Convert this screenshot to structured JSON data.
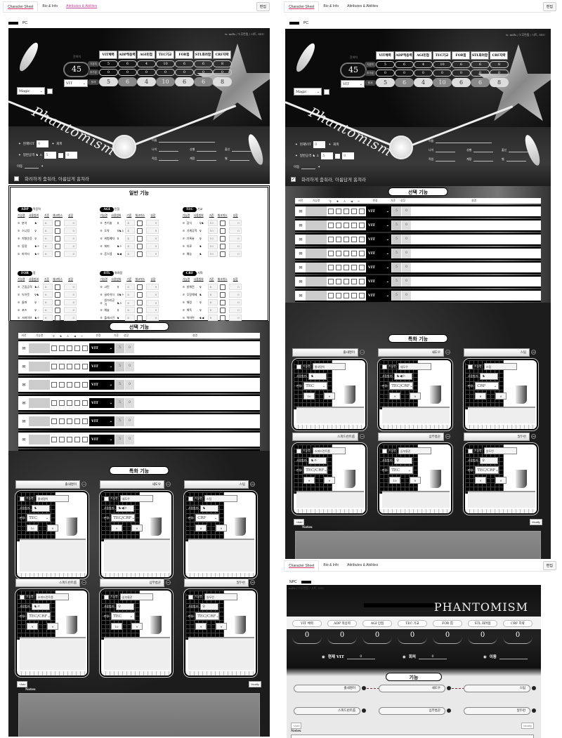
{
  "tabs": [
    "Character Sheet",
    "Bio & Info",
    "Attributes & Abilities"
  ],
  "edit_button": "편집",
  "pc": {
    "label": "PC",
    "credit": "w. mills / T.무런됨 / 시트, SSU",
    "points_label": "잔여치",
    "points": "45",
    "stat_select": "VIT",
    "magic_select": "Magic",
    "logo": "Phantomism",
    "stats": {
      "headers": [
        "VIT체력",
        "ADP적응력",
        "AGI민첩",
        "TEC기교",
        "FOR힘",
        "STL화려함",
        "CRF지략"
      ],
      "row_labels": [
        "기본치",
        "추가분",
        "합계"
      ],
      "base": [
        "5",
        "6",
        "4",
        "10",
        "6",
        "6",
        "8"
      ],
      "bonus": [
        "0",
        "0",
        "0",
        "0",
        "0",
        "0",
        "0"
      ],
      "total": [
        "5",
        "6",
        "4",
        "10",
        "6",
        "6",
        "8"
      ]
    },
    "status": {
      "current_vit_label": "현재VIT",
      "current_vit": "0",
      "evade_label": "회피",
      "attack_label": "일반공격 ♞ ♙",
      "attack_value": "5",
      "attack_extra": "0",
      "move_label": "이동"
    },
    "profile": [
      "이름",
      "나이",
      "성별",
      "출신",
      "직업",
      "계정",
      "별"
    ],
    "motto": "화려하게 춤춰라, 아름답게 훔쳐라",
    "general": {
      "title": "일반 기능",
      "columns": [
        "기능명",
        "사용범위",
        "기준",
        "체크박스",
        "성장"
      ],
      "groups": [
        {
          "code": "ADP",
          "name": "적응력",
          "value": "6",
          "skills": [
            {
              "name": "분석",
              "range": "♞"
            },
            {
              "name": "스니킹",
              "range": "♀"
            },
            {
              "name": "지형순응",
              "range": "♀"
            },
            {
              "name": "동정",
              "range": "♞☼"
            },
            {
              "name": "마이티",
              "range": "♞☼"
            }
          ]
        },
        {
          "code": "AGI",
          "name": "민첩",
          "value": "4",
          "skills": [
            {
              "name": "손기술",
              "range": "♀"
            },
            {
              "name": "도약",
              "range": "♀♞♙"
            },
            {
              "name": "위험예지",
              "range": "♀"
            },
            {
              "name": "회피",
              "range": "♞☼"
            },
            {
              "name": "흔스텝",
              "range": "♞◀"
            }
          ]
        },
        {
          "code": "TEC",
          "name": "기교",
          "value": "10",
          "skills": [
            {
              "name": "감식",
              "range": "♀♞"
            },
            {
              "name": "기계공학",
              "range": "♀"
            },
            {
              "name": "기록술",
              "range": "♀"
            },
            {
              "name": "의료",
              "range": "♞"
            },
            {
              "name": "예능",
              "range": "♞"
            }
          ]
        },
        {
          "code": "FOR",
          "name": "힘",
          "value": "6",
          "skills": [
            {
              "name": "근접공격",
              "range": "♞♙"
            },
            {
              "name": "녹아웃",
              "range": "♀♞"
            },
            {
              "name": "돌파",
              "range": "♀"
            },
            {
              "name": "포즈",
              "range": "♀"
            },
            {
              "name": "서바이브",
              "range": "♞☼"
            }
          ]
        },
        {
          "code": "STL",
          "name": "화려함",
          "value": "6",
          "skills": [
            {
              "name": "고민",
              "range": "♀"
            },
            {
              "name": "글라이더",
              "range": "♀♞☼"
            },
            {
              "name": "원거리공격",
              "range": "♞♙"
            },
            {
              "name": "해술",
              "range": "♀"
            },
            {
              "name": "플래시건",
              "range": "♞"
            }
          ]
        },
        {
          "code": "CRF",
          "name": "지략",
          "value": "8",
          "skills": [
            {
              "name": "방해전",
              "range": "♀"
            },
            {
              "name": "무장해제",
              "range": "♞"
            },
            {
              "name": "해킹",
              "range": "♀"
            },
            {
              "name": "해독",
              "range": "♀"
            },
            {
              "name": "역마련",
              "range": "♞◀"
            }
          ]
        }
      ],
      "growth": "0"
    },
    "selected": {
      "title": "선택 기능",
      "columns": [
        "비전",
        "기능명",
        "♀",
        "♞",
        "♙",
        "◀",
        "☼",
        "판정",
        "기준",
        "성장",
        "설명"
      ],
      "rows": [
        {
          "judge": "VIT",
          "base": "5",
          "growth": "0"
        },
        {
          "judge": "VIT",
          "base": "5",
          "growth": "0"
        },
        {
          "judge": "VIT",
          "base": "5",
          "growth": "0"
        },
        {
          "judge": "VIT",
          "base": "5",
          "growth": "0"
        },
        {
          "judge": "VIT",
          "base": "5",
          "growth": "0"
        },
        {
          "judge": "VIT",
          "base": "5",
          "growth": "0"
        },
        {
          "judge": "VIT",
          "base": "5",
          "growth": "0"
        }
      ]
    },
    "special": {
      "title": "특화 기능",
      "labels": {
        "name": "기능명:",
        "range": "사용범위:",
        "judge": "판정:",
        "base": "기준",
        "growth": "성장",
        "desc": "설명"
      },
      "cards": [
        {
          "title": "줄내명이",
          "name": "줄내명이",
          "range": "♞",
          "judge": "TEC",
          "base": "10",
          "growth": "0"
        },
        {
          "title": "새도우",
          "name": "새도우",
          "range": "♞◀☼",
          "judge": "TEC/CRF",
          "base": "9",
          "growth": "0"
        },
        {
          "title": "스팀",
          "name": "스팀",
          "range": "♞",
          "judge": "CRF",
          "base": "8",
          "growth": "0"
        },
        {
          "title": "스피드런트룹",
          "name": "스피드런트룹",
          "range": "♞☼",
          "judge": "TEC/CRF",
          "base": "9",
          "growth": "0"
        },
        {
          "title": "심부름꾼",
          "name": "심부름꾼",
          "range": "♀",
          "judge": "TEC",
          "base": "10",
          "growth": "0"
        },
        {
          "title": "일두런",
          "name": "일두런",
          "range": "♀",
          "judge": "TEC/CRF",
          "base": "9",
          "growth": "0"
        }
      ]
    },
    "add_label": "+Add",
    "modify_label": "Modify",
    "notes_label": "Notes"
  },
  "npc": {
    "label": "NPC",
    "credit": "mills / T.무런됨 / 시트, SSU",
    "logo": "PHANTOMISM",
    "stats": [
      {
        "label": "VIT 체력",
        "value": "0"
      },
      {
        "label": "ADP 적응력",
        "value": "0"
      },
      {
        "label": "AGI 민첩",
        "value": "0"
      },
      {
        "label": "TEC 기교",
        "value": "0"
      },
      {
        "label": "FOR 힘",
        "value": "0"
      },
      {
        "label": "STL 화려함",
        "value": "0"
      },
      {
        "label": "CRF 지략",
        "value": "0"
      }
    ],
    "status": [
      {
        "label": "현재 VIT",
        "value": "0"
      },
      {
        "label": "회피",
        "value": "0"
      },
      {
        "label": "이동",
        "value": ""
      }
    ],
    "skills_title": "기능",
    "skills": [
      "줄내명이",
      "새도우",
      "스팀",
      "스피드런트룹",
      "심부름꾼",
      "일두런"
    ],
    "add_label": "+Add",
    "modify_label": "Modify",
    "notes_label": "Notes"
  }
}
